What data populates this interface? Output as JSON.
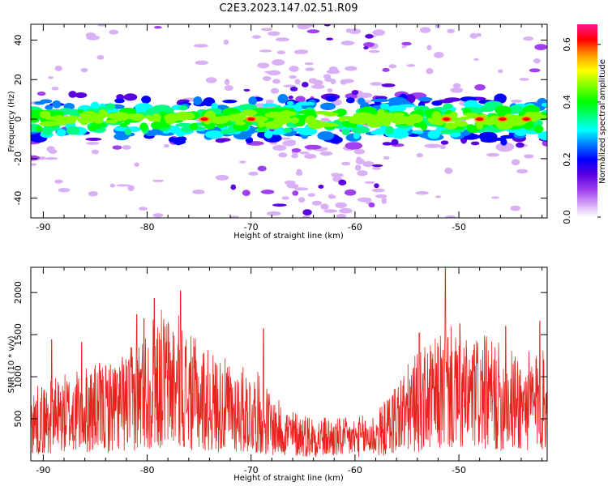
{
  "title": "C2E3.2023.147.02.51.R09",
  "colors": {
    "snr_line": "#e8231e",
    "frame": "#000000"
  },
  "chart_data": [
    {
      "type": "heatmap",
      "name": "spectrogram",
      "xlabel": "Height of straight line (km)",
      "ylabel": "Frequency (Hz)",
      "xlim": [
        -91.2,
        -41.5
      ],
      "ylim": [
        -50,
        48
      ],
      "xticks": [
        -90,
        -80,
        -70,
        -60,
        -50
      ],
      "yticks": [
        -40,
        -20,
        0,
        20,
        40
      ],
      "colorbar": {
        "label": "Normalized spectral amplitude",
        "range": [
          0,
          0.67
        ],
        "ticks": [
          0.0,
          0.2,
          0.4,
          0.6
        ],
        "colormap": [
          "#ffffff",
          "#d9b0f5",
          "#a040f0",
          "#5a00e0",
          "#0000ff",
          "#0080ff",
          "#00ffff",
          "#00ff80",
          "#00ff00",
          "#80ff00",
          "#ffff00",
          "#ff9900",
          "#ff0000",
          "#ff1493"
        ]
      },
      "grid": false,
      "band_center_hz": 0,
      "band_halfwidth_hz": 8,
      "hotspots_x_km": [
        -74.5,
        -70,
        -51.2,
        -48,
        -45.8,
        -43.5
      ]
    },
    {
      "type": "line",
      "name": "snr",
      "xlabel": "Height of straight line (km)",
      "ylabel": "SNR (10 * v/v)",
      "xlim": [
        -91.2,
        -41.5
      ],
      "ylim": [
        0,
        2300
      ],
      "xticks": [
        -90,
        -80,
        -70,
        -60,
        -50
      ],
      "yticks": [
        500,
        1000,
        1500,
        2000
      ],
      "grid": false,
      "envelope": [
        [
          -91.2,
          480
        ],
        [
          -90,
          500
        ],
        [
          -88,
          560
        ],
        [
          -86,
          620
        ],
        [
          -84,
          640
        ],
        [
          -82,
          700
        ],
        [
          -80,
          880
        ],
        [
          -79,
          1000
        ],
        [
          -78,
          960
        ],
        [
          -77,
          950
        ],
        [
          -76,
          820
        ],
        [
          -74,
          720
        ],
        [
          -72,
          640
        ],
        [
          -70,
          600
        ],
        [
          -69,
          560
        ],
        [
          -68,
          420
        ],
        [
          -66,
          330
        ],
        [
          -64,
          300
        ],
        [
          -62,
          280
        ],
        [
          -60,
          280
        ],
        [
          -58,
          320
        ],
        [
          -57,
          400
        ],
        [
          -56,
          540
        ],
        [
          -54,
          700
        ],
        [
          -52,
          800
        ],
        [
          -51,
          900
        ],
        [
          -50,
          760
        ],
        [
          -48,
          820
        ],
        [
          -46,
          760
        ],
        [
          -44,
          700
        ],
        [
          -42,
          720
        ],
        [
          -41.5,
          700
        ]
      ],
      "peaks": [
        [
          -89.2,
          1440
        ],
        [
          -86.3,
          1410
        ],
        [
          -81,
          1740
        ],
        [
          -80.3,
          1690
        ],
        [
          -79.3,
          1930
        ],
        [
          -76.8,
          2020
        ],
        [
          -68.8,
          1570
        ],
        [
          -53.8,
          1520
        ],
        [
          -51.3,
          2290
        ],
        [
          -49.9,
          1630
        ],
        [
          -45.5,
          1600
        ],
        [
          -42.2,
          1660
        ]
      ]
    }
  ]
}
